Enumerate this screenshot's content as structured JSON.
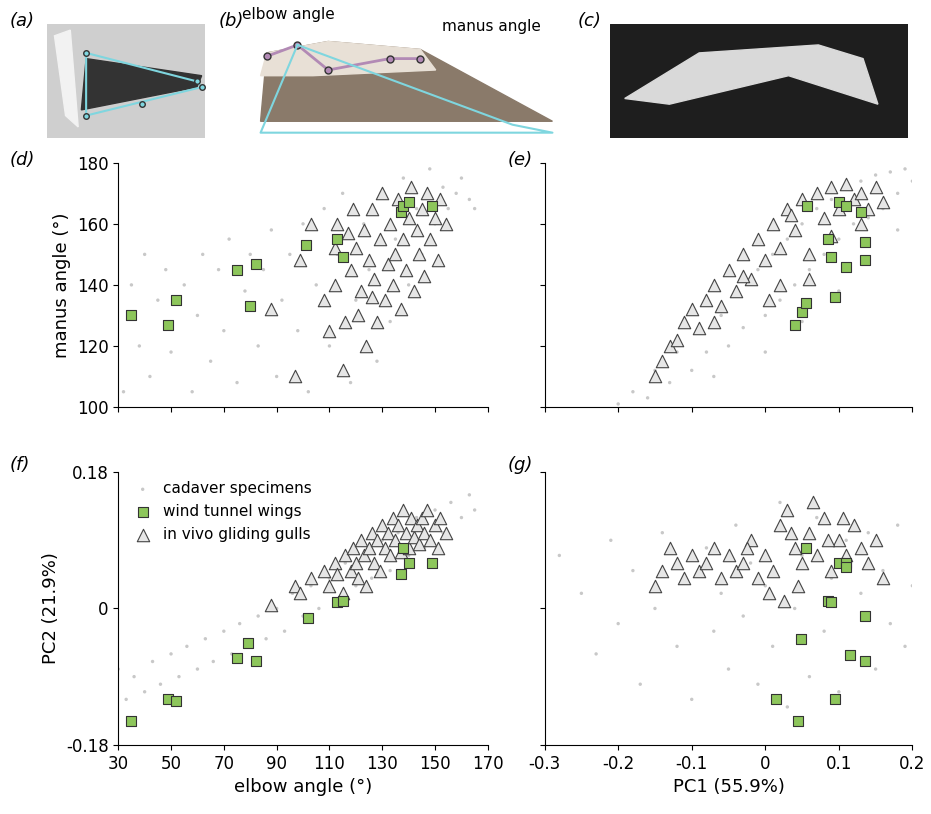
{
  "images": [
    {
      "label": "(a)"
    },
    {
      "label": "(b)",
      "annotations": [
        "elbow angle",
        "manus angle"
      ]
    },
    {
      "label": "(c)"
    }
  ],
  "chart_data": [
    {
      "type": "scatter",
      "panel_label": "(d)",
      "y_label": "manus angle (°)",
      "xlim": [
        30,
        170
      ],
      "xticks": [
        30,
        50,
        70,
        90,
        110,
        130,
        150,
        170
      ],
      "ylim": [
        100,
        180
      ],
      "yticks": [
        100,
        120,
        140,
        160,
        180
      ],
      "tick_labels": "y",
      "series": [
        {
          "name": "cadaver specimens",
          "color": "#c8c8c8",
          "marker": "o",
          "x": [
            32,
            35,
            38,
            40,
            42,
            45,
            48,
            50,
            55,
            58,
            60,
            62,
            65,
            68,
            70,
            72,
            75,
            78,
            80,
            83,
            85,
            88,
            90,
            92,
            95,
            98,
            100,
            102,
            105,
            108,
            110,
            113,
            115,
            118,
            120,
            123,
            125,
            128,
            130,
            133,
            135,
            138,
            140,
            143,
            145,
            148,
            150,
            153,
            155,
            158,
            160,
            163,
            165
          ],
          "y": [
            105,
            140,
            120,
            150,
            110,
            135,
            145,
            118,
            140,
            105,
            130,
            150,
            115,
            145,
            125,
            155,
            108,
            138,
            150,
            120,
            145,
            158,
            110,
            135,
            150,
            125,
            160,
            105,
            140,
            165,
            120,
            150,
            170,
            108,
            135,
            160,
            145,
            115,
            170,
            128,
            155,
            175,
            140,
            165,
            150,
            178,
            160,
            172,
            165,
            170,
            175,
            168,
            165
          ]
        },
        {
          "name": "wind tunnel wings",
          "color": "#8dc65b",
          "marker": "s",
          "x": [
            35,
            49,
            52,
            75,
            80,
            82,
            101,
            113,
            115,
            137,
            138,
            140,
            149
          ],
          "y": [
            130,
            127,
            135,
            145,
            133,
            147,
            153,
            155,
            149,
            164,
            166,
            167,
            166
          ]
        },
        {
          "name": "in vivo gliding gulls",
          "color": "#e6e6e6",
          "marker": "^",
          "x": [
            88,
            97,
            99,
            103,
            108,
            110,
            112,
            113,
            115,
            116,
            118,
            119,
            120,
            121,
            122,
            123,
            124,
            125,
            126,
            127,
            128,
            129,
            130,
            131,
            132,
            133,
            134,
            135,
            136,
            137,
            138,
            139,
            140,
            141,
            142,
            143,
            144,
            145,
            146,
            147,
            148,
            150,
            151,
            152,
            154,
            112,
            117,
            126
          ],
          "y": [
            132,
            110,
            148,
            160,
            135,
            125,
            140,
            160,
            112,
            128,
            145,
            165,
            152,
            130,
            138,
            158,
            120,
            148,
            165,
            142,
            128,
            155,
            170,
            135,
            147,
            160,
            140,
            150,
            168,
            132,
            155,
            145,
            162,
            172,
            138,
            158,
            150,
            165,
            143,
            170,
            155,
            162,
            148,
            168,
            160,
            152,
            157,
            136
          ]
        }
      ]
    },
    {
      "type": "scatter",
      "panel_label": "(e)",
      "xlim": [
        -0.3,
        0.2
      ],
      "xticks": [
        -0.3,
        -0.2,
        -0.1,
        0,
        0.1,
        0.2
      ],
      "ylim": [
        100,
        180
      ],
      "yticks": [
        100,
        120,
        140,
        160,
        180
      ],
      "tick_labels": false,
      "series": [
        {
          "name": "cadaver specimens",
          "color": "#c8c8c8",
          "marker": "o",
          "x": [
            -0.2,
            -0.18,
            -0.16,
            -0.15,
            -0.13,
            -0.12,
            -0.1,
            -0.09,
            -0.08,
            -0.06,
            -0.05,
            -0.04,
            -0.03,
            -0.01,
            0,
            0.01,
            0.02,
            0.03,
            0.04,
            0.05,
            0.06,
            0.07,
            0.08,
            0.09,
            0.1,
            0.11,
            0.12,
            0.13,
            0.14,
            0.15,
            0.16,
            0.17,
            0.18,
            0.19,
            0.2,
            -0.07,
            0,
            0.05,
            0.1,
            0.14,
            0.18
          ],
          "y": [
            101,
            105,
            103,
            112,
            108,
            118,
            112,
            125,
            118,
            130,
            120,
            138,
            126,
            145,
            130,
            150,
            135,
            155,
            140,
            160,
            145,
            165,
            150,
            168,
            155,
            172,
            160,
            174,
            162,
            176,
            165,
            177,
            170,
            178,
            174,
            110,
            118,
            128,
            138,
            148,
            158
          ]
        },
        {
          "name": "wind tunnel wings",
          "color": "#8dc65b",
          "marker": "s",
          "x": [
            0.04,
            0.05,
            0.055,
            0.057,
            0.09,
            0.095,
            0.085,
            0.1,
            0.11,
            0.11,
            0.135,
            0.135,
            0.13
          ],
          "y": [
            127,
            131,
            134,
            166,
            149,
            136,
            155,
            167,
            166,
            146,
            154,
            148,
            164
          ]
        },
        {
          "name": "in vivo gliding gulls",
          "color": "#e6e6e6",
          "marker": "^",
          "x": [
            -0.15,
            -0.14,
            -0.13,
            -0.12,
            -0.11,
            -0.1,
            -0.09,
            -0.08,
            -0.07,
            -0.06,
            -0.05,
            -0.04,
            -0.03,
            -0.02,
            -0.01,
            0,
            0.01,
            0.02,
            0.03,
            0.04,
            0.05,
            0.06,
            0.07,
            0.08,
            0.09,
            0.1,
            0.11,
            0.12,
            0.13,
            0.14,
            0.15,
            0.16,
            0.005,
            0.02,
            -0.07,
            0.06,
            0.09,
            0.13,
            -0.03,
            0.035
          ],
          "y": [
            110,
            115,
            120,
            122,
            128,
            132,
            126,
            135,
            140,
            133,
            145,
            138,
            150,
            142,
            155,
            148,
            160,
            152,
            165,
            158,
            168,
            150,
            170,
            162,
            172,
            165,
            173,
            168,
            170,
            165,
            172,
            167,
            135,
            140,
            128,
            142,
            156,
            160,
            143,
            163
          ]
        }
      ]
    },
    {
      "type": "scatter",
      "panel_label": "(f)",
      "x_label": "elbow angle (°)",
      "y_label": "PC2 (21.9%)",
      "legend": "upper left",
      "xlim": [
        30,
        170
      ],
      "xticks": [
        30,
        50,
        70,
        90,
        110,
        130,
        150,
        170
      ],
      "ylim": [
        -0.18,
        0.18
      ],
      "yticks": [
        -0.18,
        0,
        0.18
      ],
      "series": [
        {
          "name": "cadaver specimens",
          "color": "#c8c8c8",
          "marker": "o",
          "x": [
            30,
            33,
            36,
            40,
            43,
            46,
            50,
            53,
            56,
            60,
            63,
            66,
            70,
            73,
            76,
            80,
            83,
            86,
            90,
            93,
            96,
            100,
            103,
            106,
            110,
            113,
            116,
            120,
            123,
            126,
            130,
            133,
            136,
            140,
            143,
            146,
            150,
            153,
            156,
            160,
            163,
            165
          ],
          "y": [
            -0.08,
            -0.12,
            -0.09,
            -0.11,
            -0.07,
            -0.1,
            -0.06,
            -0.09,
            -0.05,
            -0.08,
            -0.04,
            -0.07,
            -0.03,
            -0.06,
            -0.02,
            -0.05,
            -0.01,
            -0.04,
            0,
            -0.03,
            0.02,
            -0.01,
            0.03,
            0,
            0.04,
            0.01,
            0.06,
            0.03,
            0.07,
            0.04,
            0.09,
            0.05,
            0.1,
            0.07,
            0.12,
            0.08,
            0.13,
            0.1,
            0.14,
            0.12,
            0.15,
            0.13
          ]
        },
        {
          "name": "wind tunnel wings",
          "color": "#8dc65b",
          "marker": "s",
          "x": [
            35,
            49,
            52,
            75,
            79,
            82,
            102,
            113,
            115,
            137,
            138,
            140,
            149
          ],
          "y": [
            -0.148,
            -0.12,
            -0.122,
            -0.065,
            -0.045,
            -0.07,
            -0.012,
            0.008,
            0.01,
            0.045,
            0.08,
            0.06,
            0.06
          ]
        },
        {
          "name": "in vivo gliding gulls",
          "color": "#e6e6e6",
          "marker": "^",
          "x": [
            88,
            97,
            99,
            103,
            108,
            110,
            112,
            113,
            115,
            116,
            118,
            119,
            120,
            121,
            122,
            123,
            124,
            125,
            126,
            127,
            128,
            129,
            130,
            131,
            132,
            133,
            134,
            135,
            136,
            137,
            138,
            139,
            140,
            141,
            142,
            143,
            144,
            145,
            146,
            147,
            148,
            150,
            151,
            152,
            154
          ],
          "y": [
            0.005,
            0.03,
            0.02,
            0.04,
            0.05,
            0.03,
            0.06,
            0.045,
            0.02,
            0.07,
            0.05,
            0.08,
            0.06,
            0.04,
            0.09,
            0.07,
            0.03,
            0.08,
            0.1,
            0.06,
            0.09,
            0.05,
            0.11,
            0.08,
            0.1,
            0.07,
            0.12,
            0.09,
            0.11,
            0.075,
            0.13,
            0.1,
            0.08,
            0.12,
            0.095,
            0.11,
            0.085,
            0.12,
            0.1,
            0.13,
            0.09,
            0.11,
            0.08,
            0.12,
            0.1
          ]
        }
      ]
    },
    {
      "type": "scatter",
      "panel_label": "(g)",
      "x_label": "PC1 (55.9%)",
      "xlim": [
        -0.3,
        0.2
      ],
      "xticks": [
        -0.3,
        -0.2,
        -0.1,
        0,
        0.1,
        0.2
      ],
      "ylim": [
        -0.18,
        0.18
      ],
      "yticks": [
        -0.18,
        0,
        0.18
      ],
      "tick_labels": "x",
      "series": [
        {
          "name": "cadaver specimens",
          "color": "#c8c8c8",
          "marker": "o",
          "x": [
            -0.28,
            -0.25,
            -0.23,
            -0.21,
            -0.2,
            -0.18,
            -0.17,
            -0.15,
            -0.14,
            -0.12,
            -0.11,
            -0.1,
            -0.08,
            -0.07,
            -0.06,
            -0.05,
            -0.04,
            -0.03,
            -0.02,
            -0.01,
            0,
            0.01,
            0.02,
            0.03,
            0.04,
            0.05,
            0.06,
            0.07,
            0.08,
            0.09,
            0.1,
            0.11,
            0.12,
            0.13,
            0.14,
            0.15,
            0.16,
            0.17,
            0.18,
            0.19,
            0.2
          ],
          "y": [
            0.07,
            0.02,
            -0.06,
            0.09,
            -0.02,
            0.05,
            -0.1,
            0,
            0.1,
            -0.05,
            0.04,
            -0.12,
            0.08,
            -0.03,
            0.02,
            -0.08,
            0.11,
            -0.01,
            0.06,
            -0.1,
            0.03,
            -0.05,
            0.14,
            -0.13,
            0,
            0.07,
            -0.09,
            0.12,
            -0.03,
            0.04,
            -0.11,
            0.09,
            -0.06,
            0.02,
            0.1,
            -0.08,
            0.05,
            -0.02,
            0.11,
            -0.05,
            0.03
          ]
        },
        {
          "name": "wind tunnel wings",
          "color": "#8dc65b",
          "marker": "s",
          "x": [
            0.015,
            0.045,
            0.048,
            0.055,
            0.085,
            0.09,
            0.095,
            0.1,
            0.11,
            0.115,
            0.135,
            0.135,
            0.11
          ],
          "y": [
            -0.12,
            -0.148,
            -0.04,
            0.08,
            0.01,
            0.008,
            -0.12,
            0.06,
            0.06,
            -0.062,
            -0.01,
            -0.07,
            0.055
          ]
        },
        {
          "name": "in vivo gliding gulls",
          "color": "#e6e6e6",
          "marker": "^",
          "x": [
            -0.15,
            -0.14,
            -0.13,
            -0.12,
            -0.11,
            -0.1,
            -0.09,
            -0.08,
            -0.07,
            -0.06,
            -0.05,
            -0.04,
            -0.03,
            -0.02,
            -0.01,
            0,
            0.01,
            0.02,
            0.03,
            0.04,
            0.05,
            0.06,
            0.07,
            0.08,
            0.09,
            0.1,
            0.11,
            0.12,
            0.13,
            0.14,
            0.15,
            0.16,
            0.005,
            0.025,
            0.045,
            0.065,
            0.085,
            0.105,
            -0.025,
            0.035
          ],
          "y": [
            0.03,
            0.05,
            0.08,
            0.06,
            0.04,
            0.07,
            0.05,
            0.06,
            0.08,
            0.04,
            0.07,
            0.05,
            0.06,
            0.09,
            0.04,
            0.07,
            0.05,
            0.11,
            0.13,
            0.08,
            0.06,
            0.1,
            0.07,
            0.12,
            0.05,
            0.09,
            0.07,
            0.11,
            0.08,
            0.06,
            0.09,
            0.04,
            0.02,
            0.01,
            0.03,
            0.14,
            0.09,
            0.12,
            0.08,
            0.1
          ]
        }
      ]
    }
  ]
}
